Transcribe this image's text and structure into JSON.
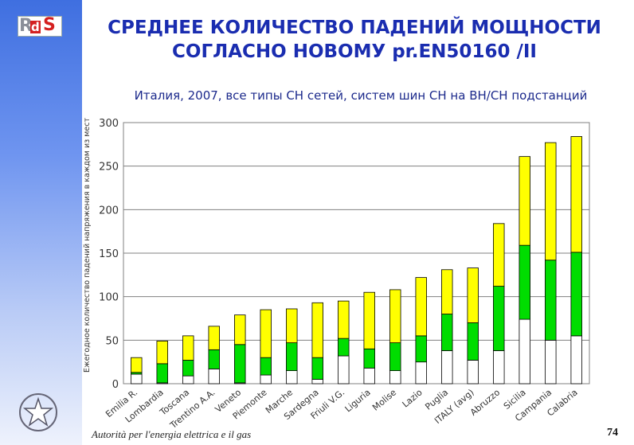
{
  "logo": {
    "r": "R",
    "d": "d",
    "s": "S"
  },
  "title": {
    "line1": "СРЕДНЕЕ КОЛИЧЕСТВО ПАДЕНИЙ МОЩНОСТИ",
    "line2": "СОГЛАСНО НОВОМУ pr.EN50160 /II"
  },
  "footer": "Autorità per l'energia elettrica e il gas",
  "page_number": "74",
  "colors": {
    "yellow": "#ffff00",
    "green": "#00dd00",
    "white": "#ffffff",
    "title": "#1a2db0",
    "bar_outline": "#000000"
  },
  "chart_data": {
    "type": "bar",
    "stacked": true,
    "title": "Италия, 2007, все типы СН сетей, систем шин СН на ВН/СН подстанций",
    "ylabel": "Ежегодное количество падений напряжения в каждом из мест",
    "ylim": [
      0,
      300
    ],
    "yticks": [
      0,
      50,
      100,
      150,
      200,
      250,
      300
    ],
    "grid": true,
    "categories": [
      "Emilia R.",
      "Lombardia",
      "Toscana",
      "Trentino A.A.",
      "Veneto",
      "Piemonte",
      "Marche",
      "Sardegna",
      "Friuli V.G.",
      "Liguria",
      "Molise",
      "Lazio",
      "Puglia",
      "ITALY (avg)",
      "Abruzzo",
      "Sicilia",
      "Campania",
      "Calabria"
    ],
    "series": [
      {
        "color": "white",
        "values": [
          11,
          1,
          9,
          17,
          1,
          10,
          15,
          5,
          32,
          18,
          15,
          25,
          38,
          27,
          38,
          74,
          50,
          55
        ]
      },
      {
        "color": "green",
        "values": [
          2,
          22,
          18,
          22,
          44,
          20,
          32,
          25,
          20,
          22,
          32,
          30,
          42,
          43,
          74,
          85,
          92,
          96
        ]
      },
      {
        "color": "yellow",
        "values": [
          17,
          26,
          28,
          27,
          34,
          55,
          39,
          63,
          43,
          65,
          61,
          67,
          51,
          63,
          72,
          102,
          135,
          133
        ]
      }
    ]
  }
}
